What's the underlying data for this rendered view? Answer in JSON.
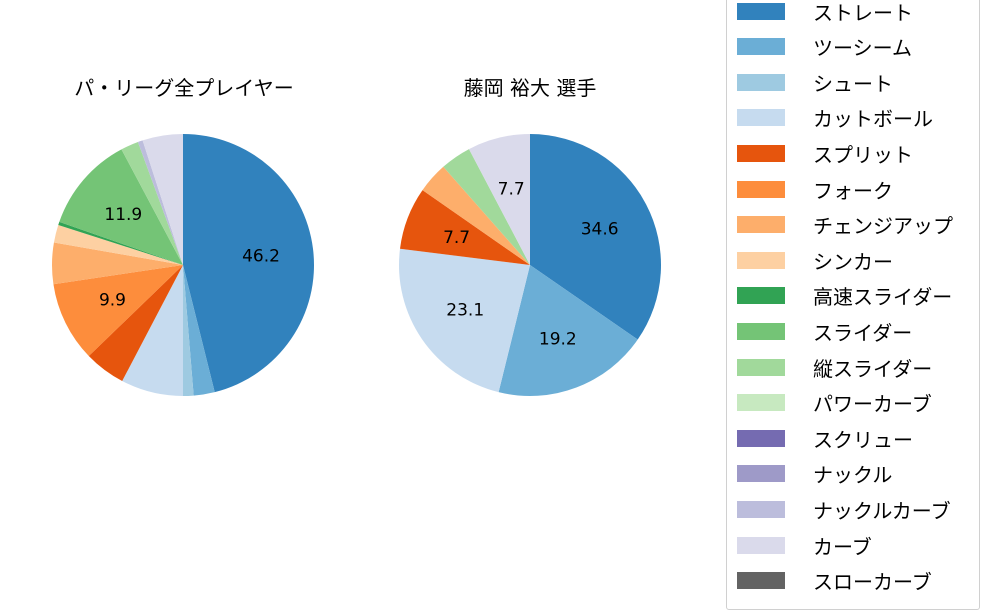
{
  "chart_data": [
    {
      "type": "pie",
      "title": "パ・リーグ全プレイヤー",
      "categories": [
        "ストレート",
        "ツーシーム",
        "シュート",
        "カットボール",
        "スプリット",
        "フォーク",
        "チェンジアップ",
        "シンカー",
        "高速スライダー",
        "スライダー",
        "縦スライダー",
        "パワーカーブ",
        "スクリュー",
        "ナックル",
        "ナックルカーブ",
        "カーブ",
        "スローカーブ"
      ],
      "values": [
        46.2,
        2.6,
        1.3,
        7.7,
        5.1,
        9.9,
        5.1,
        2.2,
        0.4,
        11.9,
        2.2,
        0,
        0,
        0,
        0.6,
        5.0,
        0
      ],
      "labels_shown": [
        "46.2",
        "9.9",
        "11.9"
      ]
    },
    {
      "type": "pie",
      "title": "藤岡 裕大  選手",
      "categories": [
        "ストレート",
        "ツーシーム",
        "シュート",
        "カットボール",
        "スプリット",
        "フォーク",
        "チェンジアップ",
        "シンカー",
        "高速スライダー",
        "スライダー",
        "縦スライダー",
        "パワーカーブ",
        "スクリュー",
        "ナックル",
        "ナックルカーブ",
        "カーブ",
        "スローカーブ"
      ],
      "values": [
        34.6,
        19.2,
        0,
        23.1,
        7.7,
        0,
        3.8,
        0,
        0,
        0,
        3.8,
        0,
        0,
        0,
        0,
        7.7,
        0
      ],
      "labels_shown": [
        "34.6",
        "19.2",
        "23.1",
        "7.7",
        "7.7"
      ]
    }
  ],
  "titles": {
    "left": "パ・リーグ全プレイヤー",
    "right": "藤岡 裕大  選手"
  },
  "legend": [
    {
      "label": "ストレート",
      "color": "#3182bd"
    },
    {
      "label": "ツーシーム",
      "color": "#6baed6"
    },
    {
      "label": "シュート",
      "color": "#9ecae1"
    },
    {
      "label": "カットボール",
      "color": "#c6dbef"
    },
    {
      "label": "スプリット",
      "color": "#e6550d"
    },
    {
      "label": "フォーク",
      "color": "#fd8d3c"
    },
    {
      "label": "チェンジアップ",
      "color": "#fdae6b"
    },
    {
      "label": "シンカー",
      "color": "#fdd0a2"
    },
    {
      "label": "高速スライダー",
      "color": "#31a354"
    },
    {
      "label": "スライダー",
      "color": "#74c476"
    },
    {
      "label": "縦スライダー",
      "color": "#a1d99b"
    },
    {
      "label": "パワーカーブ",
      "color": "#c7e9c0"
    },
    {
      "label": "スクリュー",
      "color": "#756bb1"
    },
    {
      "label": "ナックル",
      "color": "#9e9ac8"
    },
    {
      "label": "ナックルカーブ",
      "color": "#bcbddc"
    },
    {
      "label": "カーブ",
      "color": "#dadaeb"
    },
    {
      "label": "スローカーブ",
      "color": "#636363"
    }
  ]
}
